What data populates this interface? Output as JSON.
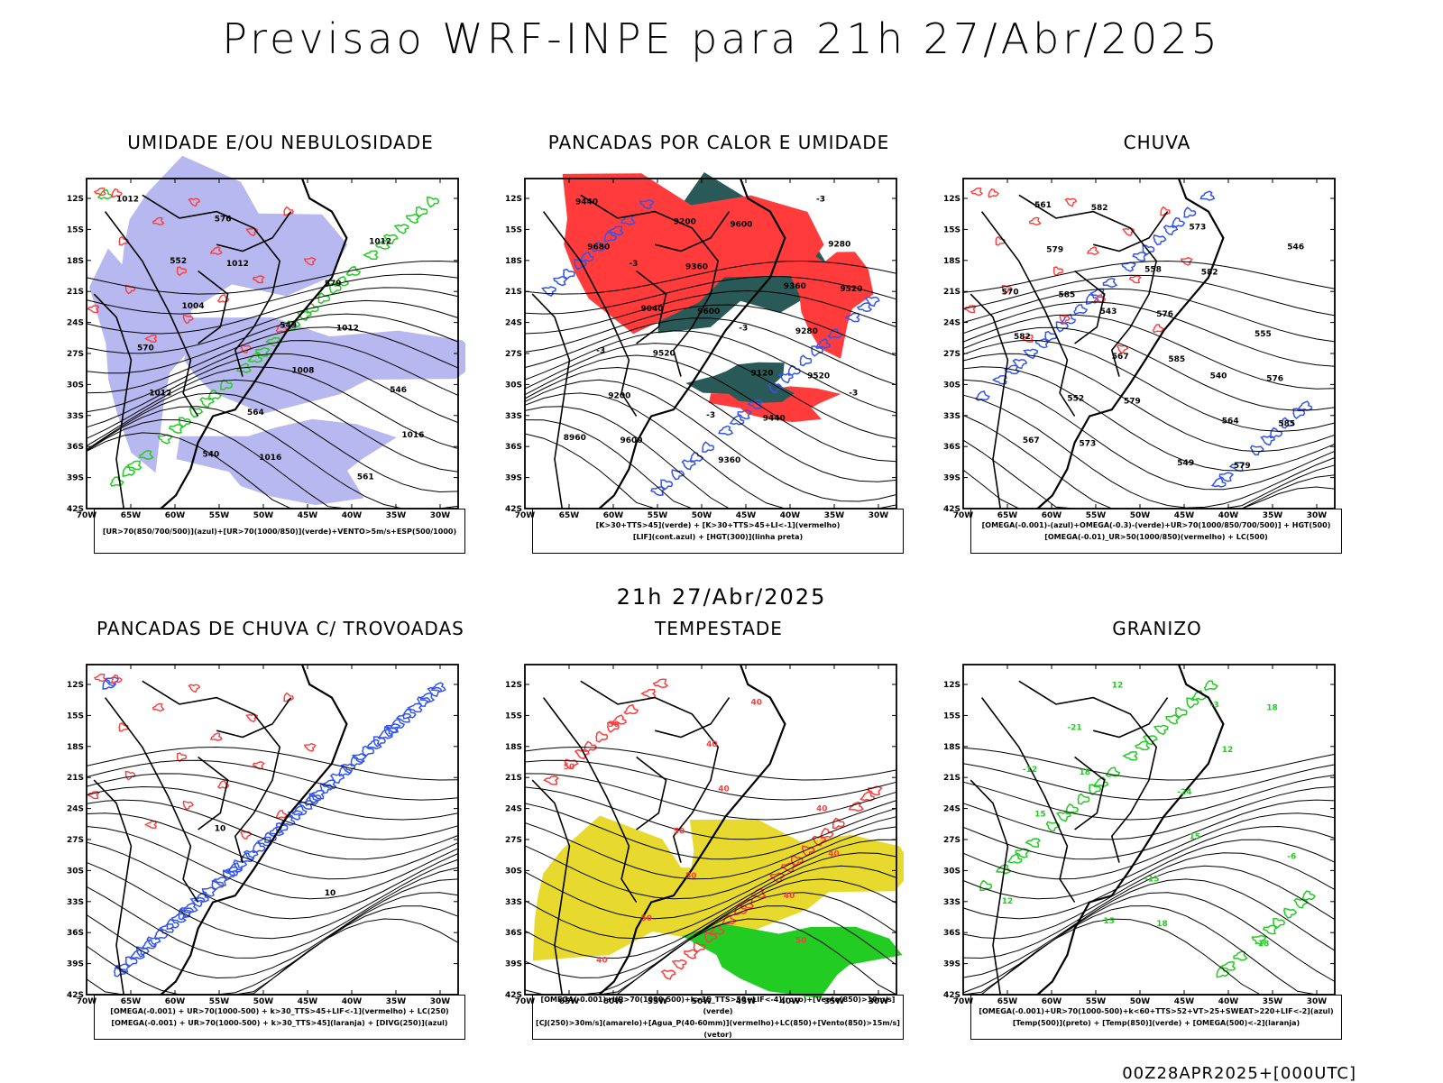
{
  "main_title": "Previsao WRF-INPE  para 21h 27/Abr/2025",
  "mid_title": "21h 27/Abr/2025",
  "footer": "00Z28APR2025+[000UTC]",
  "lat_ticks": [
    "12S",
    "15S",
    "18S",
    "21S",
    "24S",
    "27S",
    "30S",
    "33S",
    "36S",
    "39S",
    "42S"
  ],
  "lon_ticks": [
    "70W",
    "65W",
    "60W",
    "55W",
    "50W",
    "45W",
    "40W",
    "35W",
    "30W"
  ],
  "colors": {
    "blue": "#3355ee",
    "green": "#22cc22",
    "red": "#ff3b3b",
    "dark_teal": "#2a5a57",
    "yellow": "#e8d92e",
    "light_blue": "#b8b8f0",
    "orange": "#ff8c1a"
  },
  "panels": [
    {
      "title": "UMIDADE E/OU NEBULOSIDADE",
      "legend": [
        "[UR>70(850/700/500)](azul)+[UR>70(1000/850)](verde)+VENTO>5m/s+ESP(500/1000)"
      ],
      "labels": [
        "1012",
        "1012",
        "1012",
        "1012",
        "1016",
        "1012",
        "1004",
        "1008",
        "1016",
        "576",
        "579",
        "570",
        "564",
        "561",
        "552",
        "549",
        "546",
        "540"
      ]
    },
    {
      "title": "PANCADAS POR CALOR E UMIDADE",
      "legend": [
        "[K>30+TTS>45](verde) + [K>30+TTS>45+LI<-1](vermelho)",
        "[LIF](cont.azul) + [HGT(300)](linha preta)"
      ],
      "labels": [
        "9680",
        "9600",
        "9520",
        "9600",
        "9600",
        "9520",
        "9520",
        "9440",
        "9440",
        "9360",
        "9280",
        "9200",
        "9360",
        "9280",
        "9040",
        "9120",
        "8960",
        "9200",
        "9360",
        "-3",
        "-3",
        "-3",
        "-3",
        "-3",
        "-3"
      ]
    },
    {
      "title": "CHUVA",
      "legend": [
        "[OMEGA(-0.001)-(azul)+OMEGA(-0.3)-(verde)+UR>70(1000/850/700/500)] + HGT(500)",
        "[OMEGA(-0.01)_UR>50(1000/850)(vermelho) + LC(500)"
      ],
      "labels": [
        "585",
        "585",
        "585",
        "582",
        "582",
        "582",
        "579",
        "579",
        "579",
        "576",
        "576",
        "573",
        "573",
        "570",
        "567",
        "564",
        "561",
        "558",
        "555",
        "552",
        "549",
        "546",
        "543",
        "540",
        "567"
      ]
    },
    {
      "title": "PANCADAS DE CHUVA C/ TROVOADAS",
      "legend": [
        "[OMEGA(-0.001) + UR>70(1000-500) + k>30_TTS>45+LIF<-1](vermelho) + LC(250)",
        "[OMEGA(-0.001) + UR>70(1000-500) + k>30_TTS>45](laranja) + [DIVG(250)](azul)"
      ],
      "labels": [
        "10",
        "10"
      ]
    },
    {
      "title": "TEMPESTADE",
      "legend": [
        "[OMEGA(-0.001)+UR>70(1000-500)+k>35_TTS>50+LIF<-4](roxo)+[Vento(850)>10m/s](verde)",
        "[CJ(250)>30m/s](amarelo)+[Agua_P(40-60mm)](vermelho)+LC(850)+[Vento(850)>15m/s](vetor)"
      ],
      "labels": [
        "50",
        "50",
        "50",
        "40",
        "40",
        "50",
        "40",
        "50",
        "50",
        "40",
        "40",
        "40",
        "40"
      ]
    },
    {
      "title": "GRANIZO",
      "legend": [
        "[OMEGA(-0.001)+UR>70(1000-500)+k<60+TTS>52+VT>25+SWEAT>220+LIF<-2](azul)",
        "[Temp(500)](preto) + [Temp(850)](verde) + [OMEGA(500)<-2](laranja)"
      ],
      "labels": [
        "18",
        "18",
        "18",
        "15",
        "12",
        "12",
        "12",
        "15",
        "-15",
        "-18",
        "-21",
        "-24",
        "-6",
        "-15",
        "-3",
        "-12"
      ]
    }
  ]
}
